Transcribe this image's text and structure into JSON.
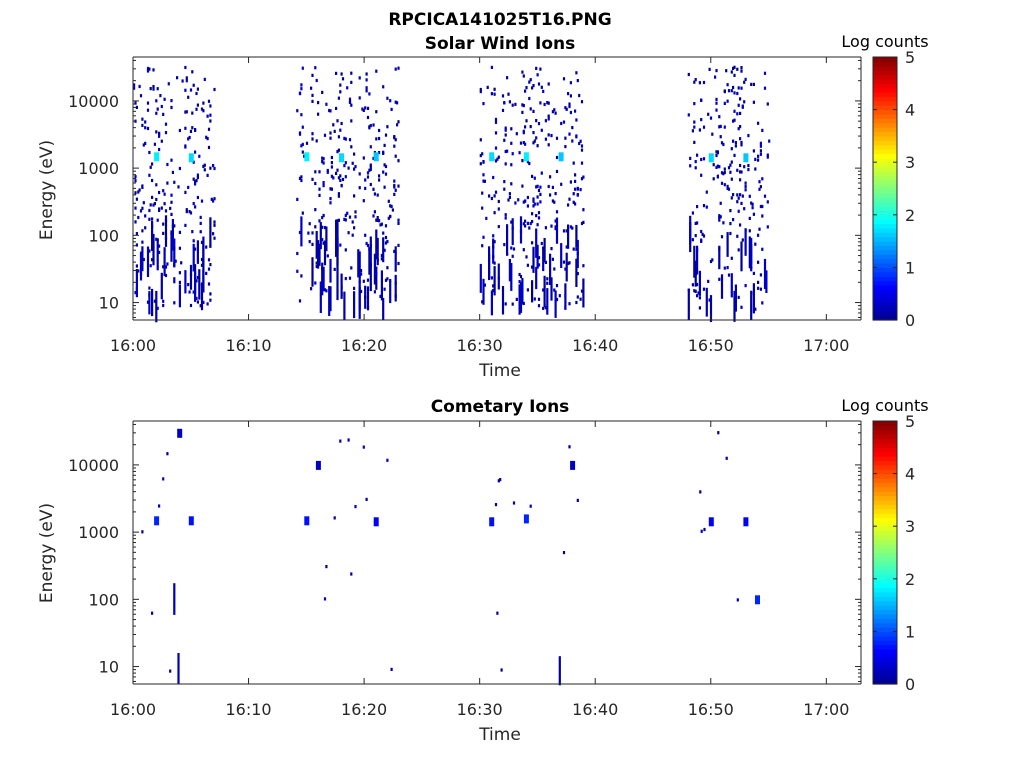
{
  "figure_title": "RPCICA141025T16.PNG",
  "colors": {
    "colormap": [
      "#00008f",
      "#0000ff",
      "#0080ff",
      "#00ffff",
      "#80ff80",
      "#ffff00",
      "#ff8000",
      "#ff0000",
      "#800000"
    ],
    "axis": "#262626"
  },
  "chart_data": [
    {
      "type": "heatmap",
      "title": "Solar Wind Ions",
      "xlabel": "Time",
      "ylabel": "Energy (eV)",
      "colorbar_label": "Log counts",
      "colorbar_ticks": [
        "0",
        "1",
        "2",
        "3",
        "4",
        "5"
      ],
      "clim": [
        0,
        5
      ],
      "xlim": [
        "16:00",
        "17:03"
      ],
      "x_ticks": [
        "16:00",
        "16:10",
        "16:20",
        "16:30",
        "16:40",
        "16:50",
        "17:00"
      ],
      "y_scale": "log",
      "ylim": [
        5.5,
        45000
      ],
      "y_ticks": [
        "10",
        "100",
        "1000",
        "10000"
      ],
      "cells": [
        {
          "t": "16:02",
          "e": 1500,
          "v": 1.8
        },
        {
          "t": "16:05",
          "e": 1450,
          "v": 1.7
        },
        {
          "t": "16:15",
          "e": 1500,
          "v": 1.8
        },
        {
          "t": "16:18",
          "e": 1450,
          "v": 1.7
        },
        {
          "t": "16:21",
          "e": 1500,
          "v": 1.6
        },
        {
          "t": "16:31",
          "e": 1500,
          "v": 1.7
        },
        {
          "t": "16:34",
          "e": 1500,
          "v": 1.8
        },
        {
          "t": "16:37",
          "e": 1500,
          "v": 1.6
        },
        {
          "t": "16:50",
          "e": 1450,
          "v": 1.7
        },
        {
          "t": "16:53",
          "e": 1450,
          "v": 1.6
        }
      ],
      "bursts": [
        {
          "start": "16:00",
          "end": "16:07"
        },
        {
          "start": "16:14",
          "end": "16:23"
        },
        {
          "start": "16:30",
          "end": "16:39"
        },
        {
          "start": "16:48",
          "end": "16:55"
        }
      ]
    },
    {
      "type": "heatmap",
      "title": "Cometary Ions",
      "xlabel": "Time",
      "ylabel": "Energy (eV)",
      "colorbar_label": "Log counts",
      "colorbar_ticks": [
        "0",
        "1",
        "2",
        "3",
        "4",
        "5"
      ],
      "clim": [
        0,
        5
      ],
      "xlim": [
        "16:00",
        "17:03"
      ],
      "x_ticks": [
        "16:00",
        "16:10",
        "16:20",
        "16:30",
        "16:40",
        "16:50",
        "17:00"
      ],
      "y_scale": "log",
      "ylim": [
        5.5,
        45000
      ],
      "y_ticks": [
        "10",
        "100",
        "1000",
        "10000"
      ],
      "cells": [
        {
          "t": "16:02",
          "e": 1500,
          "v": 0.8
        },
        {
          "t": "16:05",
          "e": 1500,
          "v": 0.7
        },
        {
          "t": "16:15",
          "e": 1500,
          "v": 0.7
        },
        {
          "t": "16:21",
          "e": 1450,
          "v": 0.6
        },
        {
          "t": "16:31",
          "e": 1450,
          "v": 0.7
        },
        {
          "t": "16:34",
          "e": 1600,
          "v": 0.8
        },
        {
          "t": "16:50",
          "e": 1450,
          "v": 0.6
        },
        {
          "t": "16:53",
          "e": 1450,
          "v": 0.6
        },
        {
          "t": "16:04",
          "e": 30000,
          "v": 0.3
        },
        {
          "t": "16:16",
          "e": 10000,
          "v": 0.3
        },
        {
          "t": "16:38",
          "e": 10000,
          "v": 0.3
        },
        {
          "t": "16:54",
          "e": 100,
          "v": 0.8
        }
      ],
      "bursts": [
        {
          "start": "16:00",
          "end": "16:07"
        },
        {
          "start": "16:14",
          "end": "16:23"
        },
        {
          "start": "16:30",
          "end": "16:39"
        },
        {
          "start": "16:49",
          "end": "16:55"
        }
      ]
    }
  ]
}
